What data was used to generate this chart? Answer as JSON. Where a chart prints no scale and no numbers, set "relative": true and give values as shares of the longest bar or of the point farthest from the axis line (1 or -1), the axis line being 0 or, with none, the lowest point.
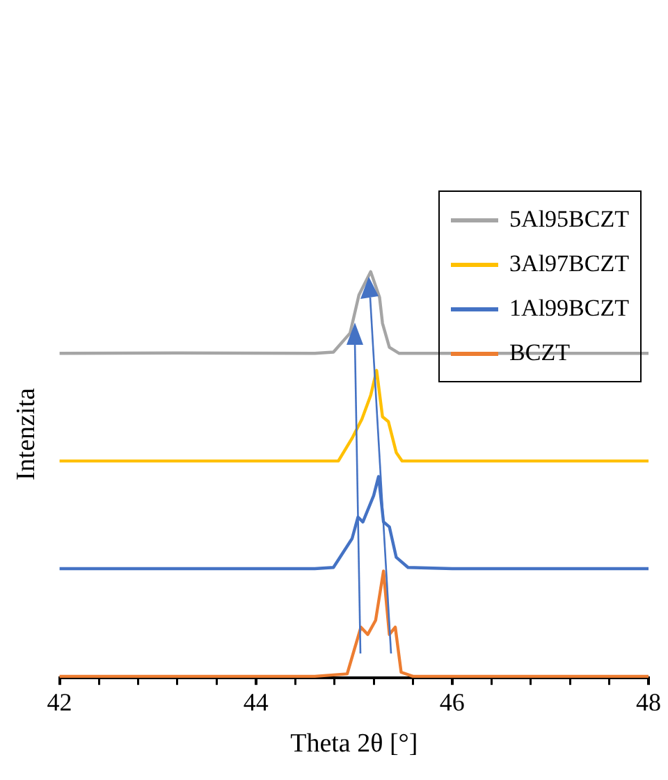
{
  "chart_data": {
    "type": "line",
    "relative": true,
    "xlabel": "Theta 2θ [°]",
    "ylabel": "Intenzita",
    "xlim": [
      42,
      48
    ],
    "xticks": [
      42,
      {
        "value": 42.4,
        "label": null
      },
      {
        "value": 42.8,
        "label": null
      },
      {
        "value": 43.2,
        "label": null
      },
      {
        "value": 43.6,
        "label": null
      },
      44,
      {
        "value": 44.4,
        "label": null
      },
      {
        "value": 44.8,
        "label": null
      },
      {
        "value": 45.2,
        "label": null
      },
      {
        "value": 45.6,
        "label": null
      },
      46,
      {
        "value": 46.4,
        "label": null
      },
      {
        "value": 46.8,
        "label": null
      },
      {
        "value": 47.2,
        "label": null
      },
      {
        "value": 47.6,
        "label": null
      },
      48
    ],
    "grid": false,
    "legend": "top right",
    "marker": "none",
    "line_style": "solid",
    "tick_labels": "x",
    "series": [
      {
        "name": "5Al95BCZT",
        "color": "#a5a5a5",
        "x": [
          42,
          43.2,
          44.6,
          44.79,
          44.96,
          45.05,
          45.17,
          45.26,
          45.29,
          45.36,
          45.46,
          48
        ],
        "values": [
          0.799,
          0.8,
          0.799,
          0.802,
          0.849,
          0.943,
          1.0,
          0.937,
          0.873,
          0.814,
          0.799,
          0.799
        ]
      },
      {
        "name": "3Al97BCZT",
        "color": "#ffc000",
        "x": [
          42,
          44.6,
          44.84,
          44.98,
          45.08,
          45.17,
          45.23,
          45.29,
          45.35,
          45.43,
          45.49,
          46,
          48
        ],
        "values": [
          0.534,
          0.534,
          0.534,
          0.59,
          0.637,
          0.696,
          0.757,
          0.643,
          0.631,
          0.555,
          0.534,
          0.534,
          0.534
        ]
      },
      {
        "name": "1Al99BCZT",
        "color": "#4472c4",
        "x": [
          42,
          44.6,
          44.79,
          44.98,
          45.04,
          45.09,
          45.2,
          45.25,
          45.3,
          45.36,
          45.43,
          45.55,
          46,
          48
        ],
        "values": [
          0.269,
          0.269,
          0.272,
          0.343,
          0.396,
          0.384,
          0.449,
          0.496,
          0.384,
          0.372,
          0.297,
          0.272,
          0.269,
          0.269
        ]
      },
      {
        "name": "BCZT",
        "color": "#ed7d31",
        "x": [
          42,
          44.6,
          44.93,
          45.07,
          45.14,
          45.22,
          45.3,
          45.36,
          45.42,
          45.48,
          45.6,
          48
        ],
        "values": [
          0.004,
          0.004,
          0.01,
          0.125,
          0.107,
          0.142,
          0.263,
          0.107,
          0.125,
          0.014,
          0.004,
          0.004
        ]
      }
    ]
  }
}
